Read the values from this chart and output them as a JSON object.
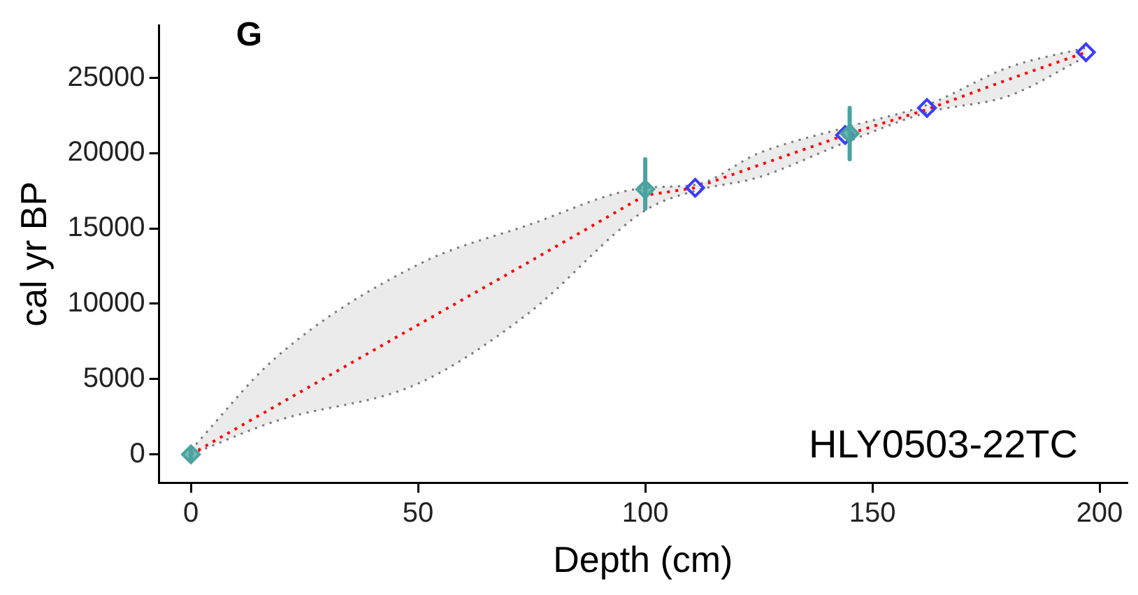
{
  "chart_data": {
    "type": "line",
    "title": "G",
    "xlabel": "Depth (cm)",
    "ylabel": "cal yr BP",
    "annotations": [
      "HLY0503-22TC"
    ],
    "xlim": [
      -7,
      206
    ],
    "xticks": [
      0,
      50,
      100,
      150,
      200
    ],
    "ylim": [
      -1900,
      28500
    ],
    "yticks": [
      0,
      5000,
      10000,
      15000,
      20000,
      25000
    ],
    "grid": false,
    "legend": false,
    "series": [
      {
        "color": "#ff0000",
        "line_style": "dotted",
        "marker": "none",
        "x": [
          0,
          18.6,
          50,
          74,
          100,
          111,
          125,
          144,
          162,
          180,
          197
        ],
        "values": [
          0,
          3200,
          8600,
          12700,
          17200,
          17700,
          19200,
          21200,
          22900,
          24900,
          26700
        ],
        "lower": [
          0,
          2200,
          4700,
          9300,
          16200,
          17500,
          18400,
          20700,
          22700,
          23800,
          26400
        ],
        "upper": [
          300,
          6400,
          12600,
          15200,
          17700,
          17900,
          20000,
          21700,
          23200,
          25700,
          27000
        ]
      },
      {
        "type": "line",
        "color": "#777777",
        "line_style": "dotted",
        "marker": "none",
        "x": [
          0,
          18.6,
          50,
          74,
          100,
          111,
          125,
          144,
          162,
          180,
          197
        ],
        "values": [
          0,
          2200,
          4700,
          9300,
          16200,
          17500,
          18400,
          20700,
          22700,
          23800,
          26400
        ]
      },
      {
        "type": "line",
        "color": "#777777",
        "line_style": "dotted",
        "marker": "none",
        "x": [
          0,
          18.6,
          50,
          74,
          100,
          111,
          125,
          144,
          162,
          180,
          197
        ],
        "values": [
          300,
          6400,
          12600,
          15200,
          17700,
          17900,
          20000,
          21700,
          23200,
          25700,
          27000
        ]
      },
      {
        "type": "scatter",
        "color": "#4aa3a0",
        "marker": "diamond",
        "x": [
          0,
          100,
          145
        ],
        "values": [
          0,
          17600,
          21300
        ],
        "errors": [
          [
            -300,
            300
          ],
          [
            16300,
            19600
          ],
          [
            19600,
            23000
          ]
        ]
      },
      {
        "type": "scatter",
        "color": "#3b3bff",
        "marker": "diamond",
        "x": [
          111,
          144,
          162,
          197
        ],
        "values": [
          17700,
          21200,
          23000,
          26700
        ]
      }
    ]
  }
}
